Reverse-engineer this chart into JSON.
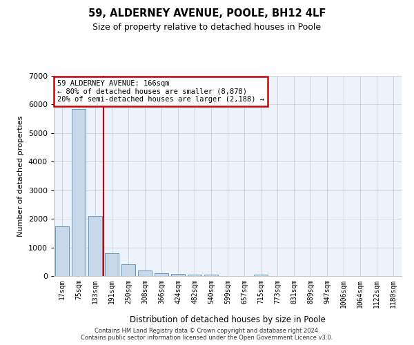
{
  "title1": "59, ALDERNEY AVENUE, POOLE, BH12 4LF",
  "title2": "Size of property relative to detached houses in Poole",
  "xlabel": "Distribution of detached houses by size in Poole",
  "ylabel": "Number of detached properties",
  "annotation_line1": "59 ALDERNEY AVENUE: 166sqm",
  "annotation_line2": "← 80% of detached houses are smaller (8,878)",
  "annotation_line3": "20% of semi-detached houses are larger (2,188) →",
  "categories": [
    "17sqm",
    "75sqm",
    "133sqm",
    "191sqm",
    "250sqm",
    "308sqm",
    "366sqm",
    "424sqm",
    "482sqm",
    "540sqm",
    "599sqm",
    "657sqm",
    "715sqm",
    "773sqm",
    "831sqm",
    "889sqm",
    "947sqm",
    "1006sqm",
    "1064sqm",
    "1122sqm",
    "1180sqm"
  ],
  "bar_values": [
    1750,
    5850,
    2100,
    800,
    420,
    190,
    100,
    70,
    60,
    55,
    0,
    0,
    55,
    0,
    0,
    0,
    0,
    0,
    0,
    0,
    0
  ],
  "bar_color": "#c8d8eb",
  "bar_edge_color": "#6699bb",
  "vline_color": "#cc0000",
  "annotation_box_color": "#cc0000",
  "background_color": "#eef2fb",
  "grid_color": "#c0ccdd",
  "ylim": [
    0,
    7000
  ],
  "yticks": [
    0,
    1000,
    2000,
    3000,
    4000,
    5000,
    6000,
    7000
  ],
  "footer_line1": "Contains HM Land Registry data © Crown copyright and database right 2024.",
  "footer_line2": "Contains public sector information licensed under the Open Government Licence v3.0."
}
